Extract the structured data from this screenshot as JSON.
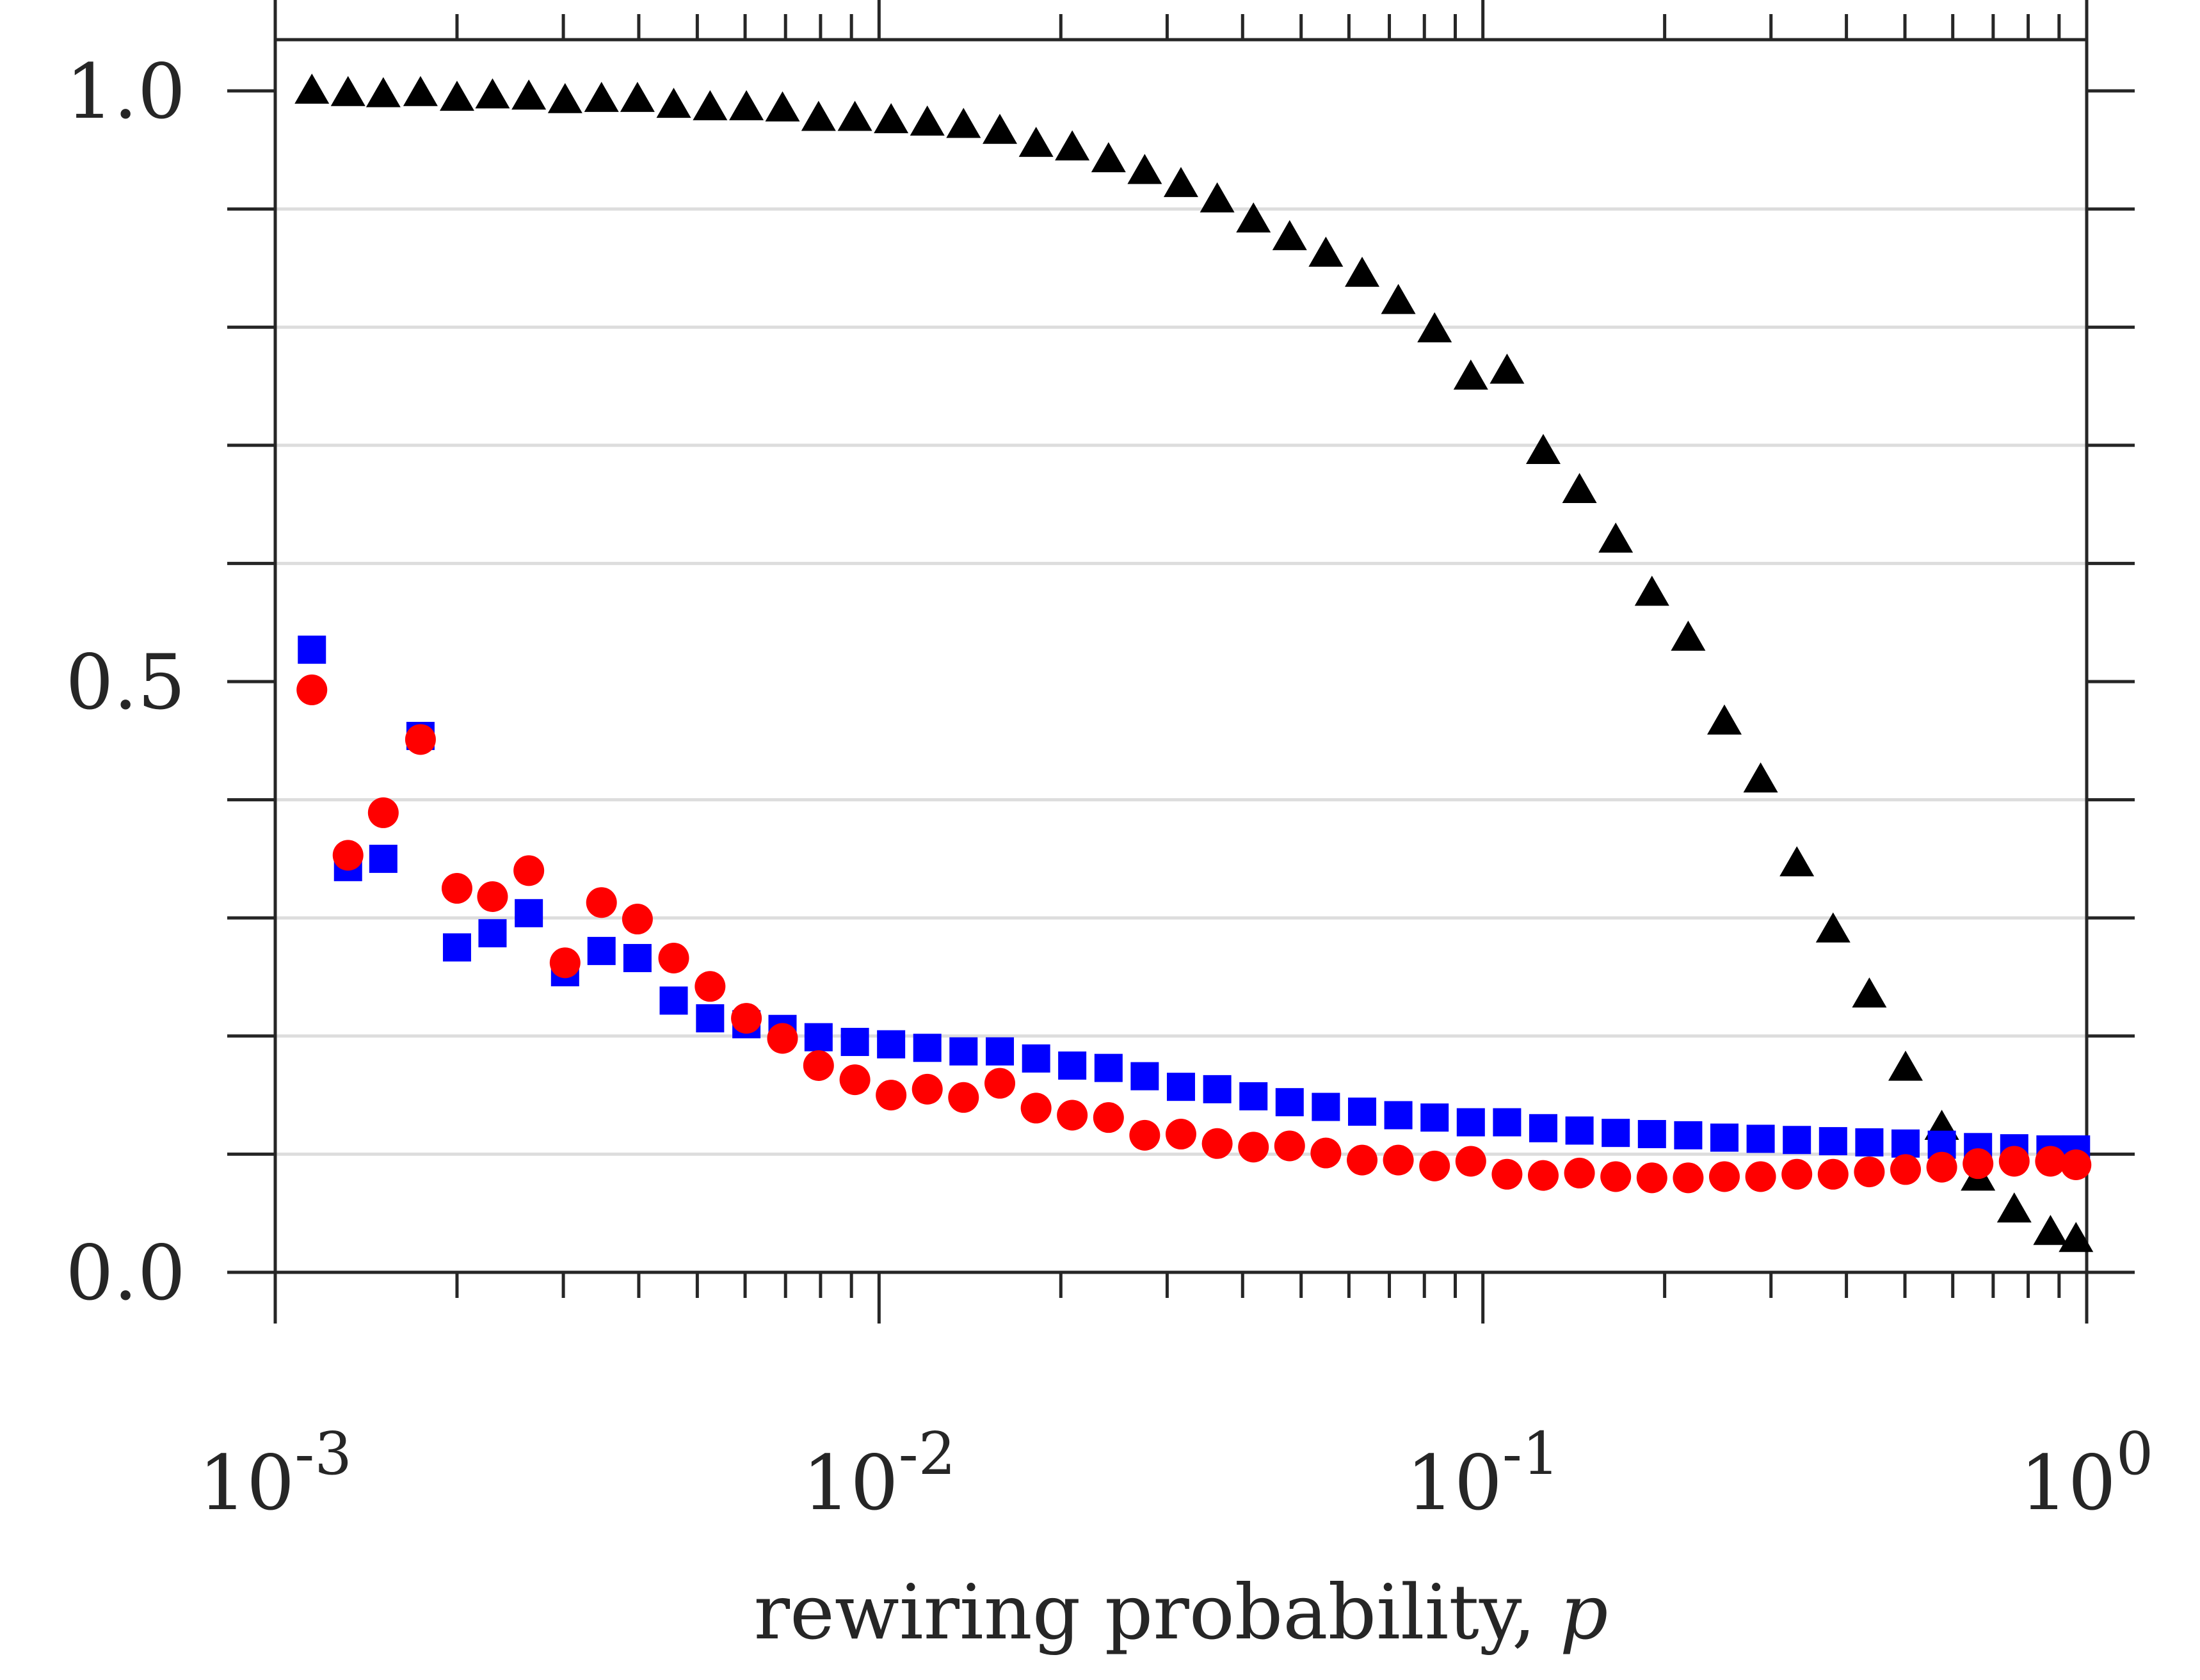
{
  "chart_data": {
    "type": "scatter",
    "title": "",
    "xlabel": "rewiring probability, ",
    "xlabel_var": "p",
    "ylabel": "",
    "xscale": "log",
    "xlim": [
      0.001,
      1
    ],
    "ylim": [
      0,
      1
    ],
    "x_ticks": [
      {
        "value": 0.001,
        "base": "10",
        "exp": "-3"
      },
      {
        "value": 0.01,
        "base": "10",
        "exp": "-2"
      },
      {
        "value": 0.1,
        "base": "10",
        "exp": "-1"
      },
      {
        "value": 1,
        "base": "10",
        "exp": "0"
      }
    ],
    "y_ticks": [
      {
        "value": 0.0,
        "label": "0.0"
      },
      {
        "value": 0.5,
        "label": "0.5"
      },
      {
        "value": 1.0,
        "label": "1.0"
      }
    ],
    "y_minor_ticks": [
      0.1,
      0.2,
      0.3,
      0.4,
      0.6,
      0.7,
      0.8,
      0.9
    ],
    "grid": "horizontal",
    "series": [
      {
        "name": "triangles",
        "marker": "triangle",
        "color": "#000000",
        "points": [
          [
            0.00115,
            1.0
          ],
          [
            0.00132,
            0.998
          ],
          [
            0.00151,
            0.997
          ],
          [
            0.00174,
            0.998
          ],
          [
            0.002,
            0.994
          ],
          [
            0.00229,
            0.996
          ],
          [
            0.00263,
            0.995
          ],
          [
            0.00302,
            0.992
          ],
          [
            0.00347,
            0.993
          ],
          [
            0.00398,
            0.993
          ],
          [
            0.00457,
            0.988
          ],
          [
            0.00525,
            0.986
          ],
          [
            0.00603,
            0.986
          ],
          [
            0.00692,
            0.985
          ],
          [
            0.00794,
            0.977
          ],
          [
            0.00912,
            0.977
          ],
          [
            0.01047,
            0.975
          ],
          [
            0.01202,
            0.973
          ],
          [
            0.0138,
            0.971
          ],
          [
            0.01585,
            0.966
          ],
          [
            0.0182,
            0.955
          ],
          [
            0.02089,
            0.952
          ],
          [
            0.02399,
            0.942
          ],
          [
            0.02754,
            0.932
          ],
          [
            0.03162,
            0.921
          ],
          [
            0.03631,
            0.908
          ],
          [
            0.04169,
            0.891
          ],
          [
            0.04786,
            0.876
          ],
          [
            0.05495,
            0.862
          ],
          [
            0.0631,
            0.845
          ],
          [
            0.07244,
            0.822
          ],
          [
            0.08318,
            0.798
          ],
          [
            0.0955,
            0.758
          ],
          [
            0.10965,
            0.763
          ],
          [
            0.12589,
            0.695
          ],
          [
            0.14454,
            0.662
          ],
          [
            0.16596,
            0.62
          ],
          [
            0.19055,
            0.575
          ],
          [
            0.21878,
            0.537
          ],
          [
            0.25119,
            0.466
          ],
          [
            0.2884,
            0.417
          ],
          [
            0.33113,
            0.346
          ],
          [
            0.38019,
            0.29
          ],
          [
            0.43652,
            0.235
          ],
          [
            0.50119,
            0.173
          ],
          [
            0.57544,
            0.123
          ],
          [
            0.66069,
            0.08
          ],
          [
            0.75858,
            0.053
          ],
          [
            0.87096,
            0.034
          ],
          [
            0.96,
            0.028
          ]
        ]
      },
      {
        "name": "squares",
        "marker": "square",
        "color": "#0000ff",
        "points": [
          [
            0.00115,
            0.527
          ],
          [
            0.00132,
            0.343
          ],
          [
            0.00151,
            0.35
          ],
          [
            0.00174,
            0.454
          ],
          [
            0.002,
            0.275
          ],
          [
            0.00229,
            0.287
          ],
          [
            0.00263,
            0.304
          ],
          [
            0.00302,
            0.254
          ],
          [
            0.00347,
            0.272
          ],
          [
            0.00398,
            0.266
          ],
          [
            0.00457,
            0.23
          ],
          [
            0.00525,
            0.215
          ],
          [
            0.00603,
            0.21
          ],
          [
            0.00692,
            0.206
          ],
          [
            0.00794,
            0.199
          ],
          [
            0.00912,
            0.195
          ],
          [
            0.01047,
            0.193
          ],
          [
            0.01202,
            0.19
          ],
          [
            0.0138,
            0.187
          ],
          [
            0.01585,
            0.187
          ],
          [
            0.0182,
            0.181
          ],
          [
            0.02089,
            0.175
          ],
          [
            0.02399,
            0.173
          ],
          [
            0.02754,
            0.166
          ],
          [
            0.03162,
            0.157
          ],
          [
            0.03631,
            0.155
          ],
          [
            0.04169,
            0.149
          ],
          [
            0.04786,
            0.144
          ],
          [
            0.05495,
            0.14
          ],
          [
            0.0631,
            0.136
          ],
          [
            0.07244,
            0.133
          ],
          [
            0.08318,
            0.131
          ],
          [
            0.0955,
            0.127
          ],
          [
            0.10965,
            0.127
          ],
          [
            0.12589,
            0.122
          ],
          [
            0.14454,
            0.12
          ],
          [
            0.16596,
            0.118
          ],
          [
            0.19055,
            0.117
          ],
          [
            0.21878,
            0.116
          ],
          [
            0.25119,
            0.114
          ],
          [
            0.2884,
            0.113
          ],
          [
            0.33113,
            0.112
          ],
          [
            0.38019,
            0.111
          ],
          [
            0.43652,
            0.11
          ],
          [
            0.50119,
            0.109
          ],
          [
            0.57544,
            0.108
          ],
          [
            0.66069,
            0.106
          ],
          [
            0.75858,
            0.105
          ],
          [
            0.87096,
            0.104
          ],
          [
            0.96,
            0.104
          ]
        ]
      },
      {
        "name": "circles",
        "marker": "circle",
        "color": "#ff0000",
        "points": [
          [
            0.00115,
            0.493
          ],
          [
            0.00132,
            0.353
          ],
          [
            0.00151,
            0.389
          ],
          [
            0.00174,
            0.451
          ],
          [
            0.002,
            0.325
          ],
          [
            0.00229,
            0.318
          ],
          [
            0.00263,
            0.34
          ],
          [
            0.00302,
            0.262
          ],
          [
            0.00347,
            0.313
          ],
          [
            0.00398,
            0.299
          ],
          [
            0.00457,
            0.266
          ],
          [
            0.00525,
            0.242
          ],
          [
            0.00603,
            0.215
          ],
          [
            0.00692,
            0.198
          ],
          [
            0.00794,
            0.175
          ],
          [
            0.00912,
            0.163
          ],
          [
            0.01047,
            0.15
          ],
          [
            0.01202,
            0.155
          ],
          [
            0.0138,
            0.148
          ],
          [
            0.01585,
            0.16
          ],
          [
            0.0182,
            0.139
          ],
          [
            0.02089,
            0.133
          ],
          [
            0.02399,
            0.131
          ],
          [
            0.02754,
            0.116
          ],
          [
            0.03162,
            0.117
          ],
          [
            0.03631,
            0.109
          ],
          [
            0.04169,
            0.106
          ],
          [
            0.04786,
            0.107
          ],
          [
            0.05495,
            0.101
          ],
          [
            0.0631,
            0.095
          ],
          [
            0.07244,
            0.095
          ],
          [
            0.08318,
            0.09
          ],
          [
            0.0955,
            0.094
          ],
          [
            0.10965,
            0.083
          ],
          [
            0.12589,
            0.082
          ],
          [
            0.14454,
            0.084
          ],
          [
            0.16596,
            0.081
          ],
          [
            0.19055,
            0.08
          ],
          [
            0.21878,
            0.08
          ],
          [
            0.25119,
            0.081
          ],
          [
            0.2884,
            0.081
          ],
          [
            0.33113,
            0.083
          ],
          [
            0.38019,
            0.083
          ],
          [
            0.43652,
            0.085
          ],
          [
            0.50119,
            0.087
          ],
          [
            0.57544,
            0.089
          ],
          [
            0.66069,
            0.092
          ],
          [
            0.75858,
            0.094
          ],
          [
            0.87096,
            0.094
          ],
          [
            0.96,
            0.091
          ]
        ]
      }
    ]
  }
}
